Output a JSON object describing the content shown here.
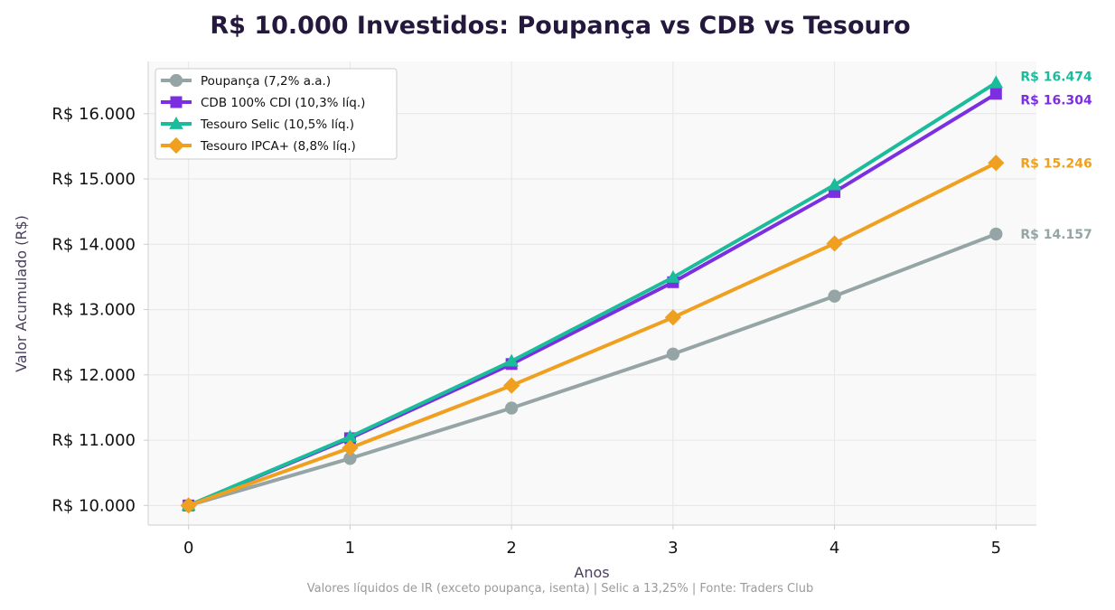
{
  "chart_data": {
    "type": "line",
    "title": "R$ 10.000 Investidos: Poupança vs CDB vs Tesouro",
    "xlabel": "Anos",
    "ylabel": "Valor Acumulado (R$)",
    "footnote": "Valores líquidos de IR (exceto poupança, isenta) | Selic a 13,25% | Fonte: Traders Club",
    "x": [
      0,
      1,
      2,
      3,
      4,
      5
    ],
    "x_tick_labels": [
      "0",
      "1",
      "2",
      "3",
      "4",
      "5"
    ],
    "xlim": [
      -0.25,
      5.25
    ],
    "ylim": [
      9700,
      16800
    ],
    "y_ticks": [
      10000,
      11000,
      12000,
      13000,
      14000,
      15000,
      16000
    ],
    "y_tick_labels": [
      "R$ 10.000",
      "R$ 11.000",
      "R$ 12.000",
      "R$ 13.000",
      "R$ 14.000",
      "R$ 15.000",
      "R$ 16.000"
    ],
    "grid": true,
    "legend_position": "top-left",
    "series": [
      {
        "name": "Poupança (7,2% a.a.)",
        "color": "#95a5a6",
        "marker": "circle",
        "values": [
          10000,
          10720,
          11492,
          12319,
          13206,
          14157
        ],
        "end_label": "R$ 14.157"
      },
      {
        "name": "CDB 100% CDI (10,3% líq.)",
        "color": "#7b2fe0",
        "marker": "square",
        "values": [
          10000,
          11030,
          12166,
          13419,
          14801,
          16304
        ],
        "end_label": "R$ 16.304"
      },
      {
        "name": "Tesouro Selic (10,5% líq.)",
        "color": "#1abc9c",
        "marker": "triangle",
        "values": [
          10000,
          11050,
          12210,
          13492,
          14909,
          16474
        ],
        "end_label": "R$ 16.474"
      },
      {
        "name": "Tesouro IPCA+ (8,8% líq.)",
        "color": "#f0a020",
        "marker": "diamond",
        "values": [
          10000,
          10880,
          11837,
          12879,
          14012,
          15246
        ],
        "end_label": "R$ 15.246"
      }
    ]
  }
}
